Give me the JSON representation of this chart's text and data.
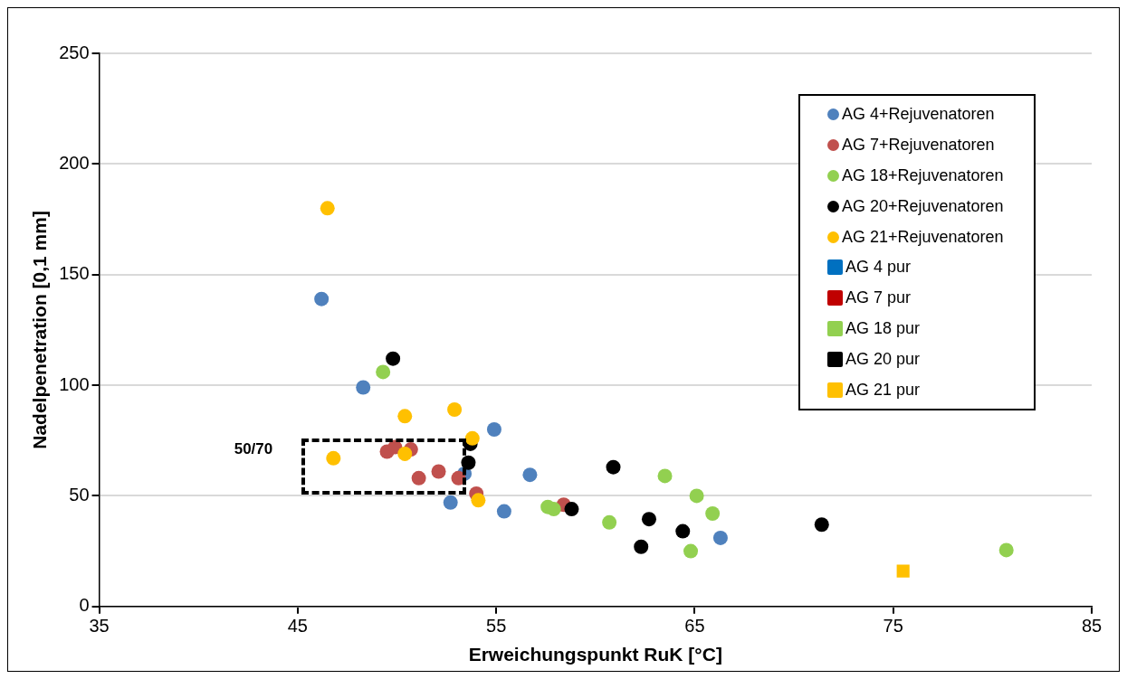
{
  "chart_data": {
    "type": "scatter",
    "xlabel": "Erweichungspunkt RuK [°C]",
    "ylabel": "Nadelpenetration [0,1 mm]",
    "xlim": [
      35,
      85
    ],
    "xticks": [
      35,
      45,
      55,
      65,
      75,
      85
    ],
    "ylim": [
      0,
      250
    ],
    "yticks": [
      0,
      50,
      100,
      150,
      200,
      250
    ],
    "grid": "y",
    "legend": "top right",
    "series": [
      {
        "name": "AG 4+Rejuvenatoren",
        "color": "#4f81bd",
        "marker": "circle",
        "x": [
          46.2,
          48.3,
          54.9,
          52.7,
          56.7,
          55.4,
          66.3,
          53.4
        ],
        "values": [
          139,
          99,
          80,
          47,
          59.5,
          43,
          31,
          60
        ]
      },
      {
        "name": "AG 7+Rejuvenatoren",
        "color": "#c0504d",
        "marker": "circle",
        "x": [
          49.5,
          49.9,
          50.7,
          51.1,
          52.1,
          53.1,
          54.0,
          58.4
        ],
        "values": [
          70,
          72,
          71,
          58,
          61,
          58,
          51,
          46
        ]
      },
      {
        "name": "AG 18+Rejuvenatoren",
        "color": "#92d050",
        "marker": "circle",
        "x": [
          49.3,
          57.6,
          57.9,
          60.7,
          63.5,
          65.1,
          65.9,
          64.8,
          80.7
        ],
        "values": [
          106,
          45,
          44,
          38,
          59,
          50,
          42,
          25,
          25.5
        ]
      },
      {
        "name": "AG 20+Rejuvenatoren",
        "color": "#000000",
        "marker": "circle",
        "x": [
          49.8,
          53.7,
          53.6,
          58.8,
          60.9,
          62.7,
          62.3,
          64.4,
          71.4
        ],
        "values": [
          112,
          73.5,
          65,
          44,
          63,
          39.5,
          27,
          34,
          37
        ]
      },
      {
        "name": "AG 21+Rejuvenatoren",
        "color": "#ffc000",
        "marker": "circle",
        "x": [
          46.5,
          46.8,
          50.4,
          50.4,
          52.9,
          53.8,
          54.1
        ],
        "values": [
          180,
          67,
          86,
          69,
          89,
          76,
          48
        ]
      },
      {
        "name": "AG 4 pur",
        "color": "#0070c0",
        "marker": "square"
      },
      {
        "name": "AG 7 pur",
        "color": "#c00000",
        "marker": "square"
      },
      {
        "name": "AG 18 pur",
        "color": "#92d050",
        "marker": "square"
      },
      {
        "name": "AG 20 pur",
        "color": "#000000",
        "marker": "square"
      },
      {
        "name": "AG 21 pur",
        "color": "#ffc000",
        "marker": "square",
        "x": [
          75.5
        ],
        "values": [
          16
        ]
      }
    ],
    "annotations": [
      "50/70"
    ]
  }
}
